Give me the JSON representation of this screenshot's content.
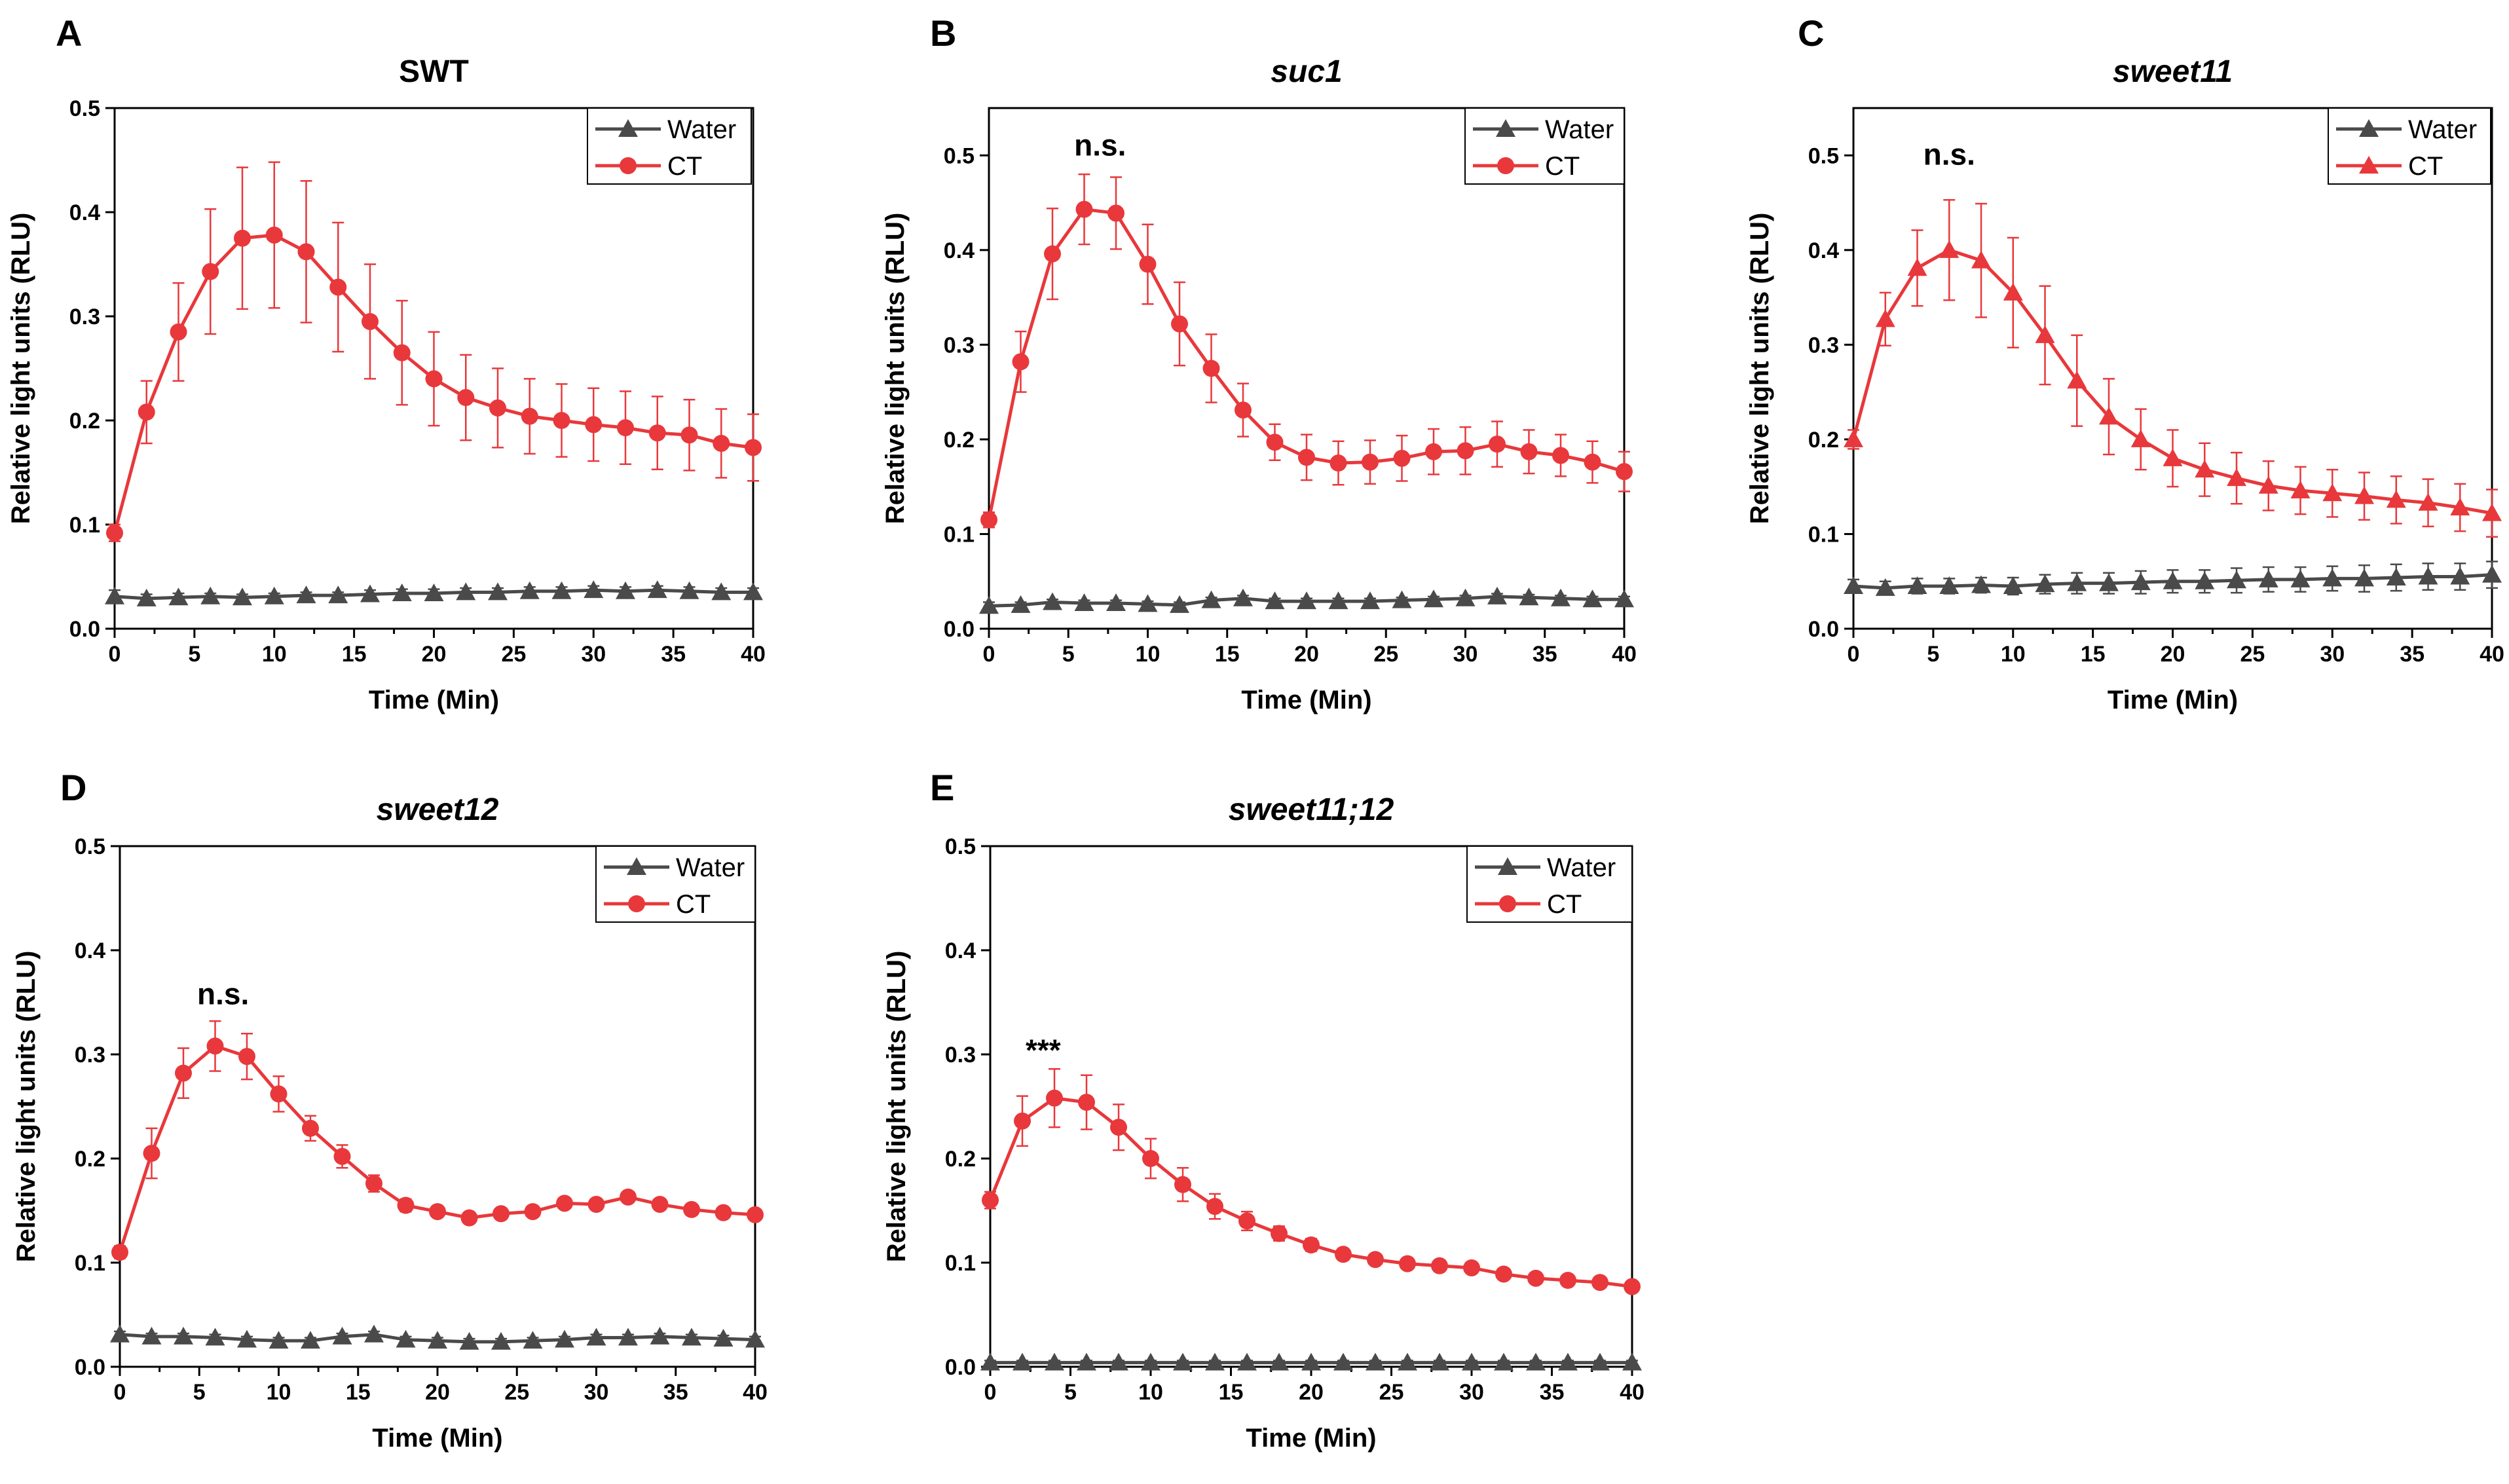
{
  "colors": {
    "water": "#4a4a4a",
    "ct": "#e8383b",
    "axis": "#000000"
  },
  "chart_data": [
    {
      "type": "line",
      "panel": "A",
      "title": "SWT",
      "title_italic": false,
      "xlabel": "Time (Min)",
      "ylabel": "Relative light units (RLU)",
      "xlim": [
        0,
        40
      ],
      "ylim": [
        0,
        0.5
      ],
      "xticks": [
        0,
        5,
        10,
        15,
        20,
        25,
        30,
        35,
        40
      ],
      "yticks": [
        0.0,
        0.1,
        0.2,
        0.3,
        0.4,
        0.5
      ],
      "annotation": "",
      "annotation_x": null,
      "annotation_y": null,
      "legend": [
        "Water",
        "CT"
      ],
      "grid": false,
      "x": [
        0,
        2,
        4,
        6,
        8,
        10,
        12,
        14,
        16,
        18,
        20,
        22,
        24,
        26,
        28,
        30,
        32,
        34,
        36,
        38,
        40
      ],
      "series": [
        {
          "name": "Water",
          "marker": "triangle",
          "values": [
            0.031,
            0.029,
            0.03,
            0.031,
            0.03,
            0.031,
            0.032,
            0.032,
            0.033,
            0.034,
            0.034,
            0.035,
            0.035,
            0.036,
            0.036,
            0.037,
            0.036,
            0.037,
            0.036,
            0.035,
            0.035
          ],
          "errors": [
            0.006,
            0.004,
            0.004,
            0.003,
            0.003,
            0.003,
            0.003,
            0.003,
            0.004,
            0.004,
            0.004,
            0.004,
            0.004,
            0.004,
            0.004,
            0.004,
            0.004,
            0.004,
            0.004,
            0.004,
            0.004
          ]
        },
        {
          "name": "CT",
          "marker": "circle",
          "values": [
            0.092,
            0.208,
            0.285,
            0.343,
            0.375,
            0.378,
            0.362,
            0.328,
            0.295,
            0.265,
            0.24,
            0.222,
            0.212,
            0.204,
            0.2,
            0.196,
            0.193,
            0.188,
            0.186,
            0.178,
            0.174
          ],
          "errors": [
            0.008,
            0.03,
            0.047,
            0.06,
            0.068,
            0.07,
            0.068,
            0.062,
            0.055,
            0.05,
            0.045,
            0.041,
            0.038,
            0.036,
            0.035,
            0.035,
            0.035,
            0.035,
            0.034,
            0.033,
            0.032
          ]
        }
      ]
    },
    {
      "type": "line",
      "panel": "B",
      "title": "suc1",
      "title_italic": true,
      "xlabel": "Time (Min)",
      "ylabel": "Relative light units (RLU)",
      "xlim": [
        0,
        40
      ],
      "ylim": [
        0,
        0.55
      ],
      "xticks": [
        0,
        5,
        10,
        15,
        20,
        25,
        30,
        35,
        40
      ],
      "yticks": [
        0.0,
        0.1,
        0.2,
        0.3,
        0.4,
        0.5
      ],
      "annotation": "n.s.",
      "annotation_x": 7,
      "annotation_y": 0.5,
      "legend": [
        "Water",
        "CT"
      ],
      "grid": false,
      "x": [
        0,
        2,
        4,
        6,
        8,
        10,
        12,
        14,
        16,
        18,
        20,
        22,
        24,
        26,
        28,
        30,
        32,
        34,
        36,
        38,
        40
      ],
      "series": [
        {
          "name": "Water",
          "marker": "triangle",
          "values": [
            0.024,
            0.025,
            0.028,
            0.027,
            0.027,
            0.026,
            0.025,
            0.03,
            0.032,
            0.029,
            0.029,
            0.029,
            0.029,
            0.03,
            0.031,
            0.032,
            0.034,
            0.033,
            0.032,
            0.031,
            0.031
          ],
          "errors": [
            0.004,
            0.003,
            0.003,
            0.003,
            0.003,
            0.003,
            0.003,
            0.003,
            0.003,
            0.003,
            0.003,
            0.003,
            0.003,
            0.003,
            0.003,
            0.003,
            0.003,
            0.003,
            0.003,
            0.003,
            0.003
          ]
        },
        {
          "name": "CT",
          "marker": "circle",
          "values": [
            0.115,
            0.282,
            0.396,
            0.443,
            0.439,
            0.385,
            0.322,
            0.275,
            0.231,
            0.197,
            0.181,
            0.175,
            0.176,
            0.18,
            0.187,
            0.188,
            0.195,
            0.187,
            0.183,
            0.176,
            0.166
          ],
          "errors": [
            0.008,
            0.032,
            0.048,
            0.037,
            0.038,
            0.042,
            0.044,
            0.036,
            0.028,
            0.019,
            0.024,
            0.023,
            0.023,
            0.024,
            0.024,
            0.025,
            0.024,
            0.023,
            0.022,
            0.022,
            0.021
          ]
        }
      ]
    },
    {
      "type": "line",
      "panel": "C",
      "title": "sweet11",
      "title_italic": true,
      "xlabel": "Time (Min)",
      "ylabel": "Relative light units (RLU)",
      "xlim": [
        0,
        40
      ],
      "ylim": [
        0,
        0.55
      ],
      "xticks": [
        0,
        5,
        10,
        15,
        20,
        25,
        30,
        35,
        40
      ],
      "yticks": [
        0.0,
        0.1,
        0.2,
        0.3,
        0.4,
        0.5
      ],
      "annotation": "n.s.",
      "annotation_x": 6,
      "annotation_y": 0.49,
      "legend": [
        "Water",
        "CT"
      ],
      "grid": false,
      "x": [
        0,
        2,
        4,
        6,
        8,
        10,
        12,
        14,
        16,
        18,
        20,
        22,
        24,
        26,
        28,
        30,
        32,
        34,
        36,
        38,
        40
      ],
      "series": [
        {
          "name": "Water",
          "marker": "triangle",
          "values": [
            0.045,
            0.043,
            0.045,
            0.045,
            0.046,
            0.045,
            0.047,
            0.048,
            0.048,
            0.049,
            0.05,
            0.05,
            0.051,
            0.052,
            0.052,
            0.053,
            0.053,
            0.054,
            0.055,
            0.055,
            0.057
          ],
          "errors": [
            0.007,
            0.007,
            0.008,
            0.008,
            0.008,
            0.009,
            0.01,
            0.011,
            0.011,
            0.012,
            0.012,
            0.012,
            0.013,
            0.013,
            0.013,
            0.013,
            0.014,
            0.014,
            0.014,
            0.014,
            0.014
          ]
        },
        {
          "name": "CT",
          "marker": "triangle",
          "values": [
            0.2,
            0.327,
            0.381,
            0.4,
            0.389,
            0.355,
            0.31,
            0.262,
            0.224,
            0.2,
            0.18,
            0.168,
            0.159,
            0.151,
            0.146,
            0.143,
            0.14,
            0.136,
            0.133,
            0.128,
            0.122
          ],
          "errors": [
            0.01,
            0.028,
            0.04,
            0.053,
            0.06,
            0.058,
            0.052,
            0.048,
            0.04,
            0.032,
            0.03,
            0.028,
            0.027,
            0.026,
            0.025,
            0.025,
            0.025,
            0.025,
            0.025,
            0.025,
            0.025
          ]
        }
      ]
    },
    {
      "type": "line",
      "panel": "D",
      "title": "sweet12",
      "title_italic": true,
      "xlabel": "Time (Min)",
      "ylabel": "Relative light units (RLU)",
      "xlim": [
        0,
        40
      ],
      "ylim": [
        0,
        0.5
      ],
      "xticks": [
        0,
        5,
        10,
        15,
        20,
        25,
        30,
        35,
        40
      ],
      "yticks": [
        0.0,
        0.1,
        0.2,
        0.3,
        0.4,
        0.5
      ],
      "annotation": "n.s.",
      "annotation_x": 6.5,
      "annotation_y": 0.348,
      "legend": [
        "Water",
        "CT"
      ],
      "grid": false,
      "x": [
        0,
        2,
        4,
        6,
        8,
        10,
        12,
        14,
        16,
        18,
        20,
        22,
        24,
        26,
        28,
        30,
        32,
        34,
        36,
        38,
        40
      ],
      "series": [
        {
          "name": "Water",
          "marker": "triangle",
          "values": [
            0.031,
            0.029,
            0.029,
            0.028,
            0.026,
            0.025,
            0.025,
            0.029,
            0.031,
            0.026,
            0.025,
            0.024,
            0.024,
            0.025,
            0.026,
            0.028,
            0.028,
            0.029,
            0.028,
            0.027,
            0.026
          ],
          "errors": [
            0.003,
            0.003,
            0.003,
            0.003,
            0.003,
            0.003,
            0.003,
            0.003,
            0.003,
            0.003,
            0.003,
            0.003,
            0.003,
            0.003,
            0.003,
            0.003,
            0.003,
            0.003,
            0.003,
            0.003,
            0.003
          ]
        },
        {
          "name": "CT",
          "marker": "circle",
          "values": [
            0.11,
            0.205,
            0.282,
            0.308,
            0.298,
            0.262,
            0.229,
            0.202,
            0.176,
            0.155,
            0.149,
            0.143,
            0.147,
            0.149,
            0.157,
            0.156,
            0.163,
            0.156,
            0.151,
            0.148,
            0.146
          ],
          "errors": [
            0.006,
            0.024,
            0.024,
            0.024,
            0.022,
            0.017,
            0.012,
            0.011,
            0.008,
            0.006,
            0.005,
            0.005,
            0.005,
            0.005,
            0.005,
            0.005,
            0.005,
            0.005,
            0.005,
            0.005,
            0.005
          ]
        }
      ]
    },
    {
      "type": "line",
      "panel": "E",
      "title": "sweet11;12",
      "title_italic": true,
      "xlabel": "Time (Min)",
      "ylabel": "Relative light units (RLU)",
      "xlim": [
        0,
        40
      ],
      "ylim": [
        0,
        0.5
      ],
      "xticks": [
        0,
        5,
        10,
        15,
        20,
        25,
        30,
        35,
        40
      ],
      "yticks": [
        0.0,
        0.1,
        0.2,
        0.3,
        0.4,
        0.5
      ],
      "annotation": "***",
      "annotation_x": 3.3,
      "annotation_y": 0.294,
      "legend": [
        "Water",
        "CT"
      ],
      "grid": false,
      "x": [
        0,
        2,
        4,
        6,
        8,
        10,
        12,
        14,
        16,
        18,
        20,
        22,
        24,
        26,
        28,
        30,
        32,
        34,
        36,
        38,
        40
      ],
      "series": [
        {
          "name": "Water",
          "marker": "triangle",
          "values": [
            0.004,
            0.004,
            0.004,
            0.004,
            0.004,
            0.004,
            0.004,
            0.004,
            0.004,
            0.004,
            0.004,
            0.004,
            0.004,
            0.004,
            0.004,
            0.004,
            0.004,
            0.004,
            0.004,
            0.004,
            0.004
          ],
          "errors": [
            0.002,
            0.002,
            0.002,
            0.002,
            0.002,
            0.002,
            0.002,
            0.002,
            0.002,
            0.002,
            0.002,
            0.002,
            0.002,
            0.002,
            0.002,
            0.002,
            0.002,
            0.002,
            0.002,
            0.002,
            0.002
          ]
        },
        {
          "name": "CT",
          "marker": "circle",
          "values": [
            0.16,
            0.236,
            0.258,
            0.254,
            0.23,
            0.2,
            0.175,
            0.154,
            0.14,
            0.128,
            0.117,
            0.108,
            0.103,
            0.099,
            0.097,
            0.095,
            0.089,
            0.085,
            0.083,
            0.081,
            0.077
          ],
          "errors": [
            0.008,
            0.024,
            0.028,
            0.026,
            0.022,
            0.019,
            0.016,
            0.012,
            0.009,
            0.007,
            0.006,
            0.005,
            0.005,
            0.005,
            0.004,
            0.004,
            0.004,
            0.004,
            0.004,
            0.004,
            0.004
          ]
        }
      ]
    }
  ]
}
